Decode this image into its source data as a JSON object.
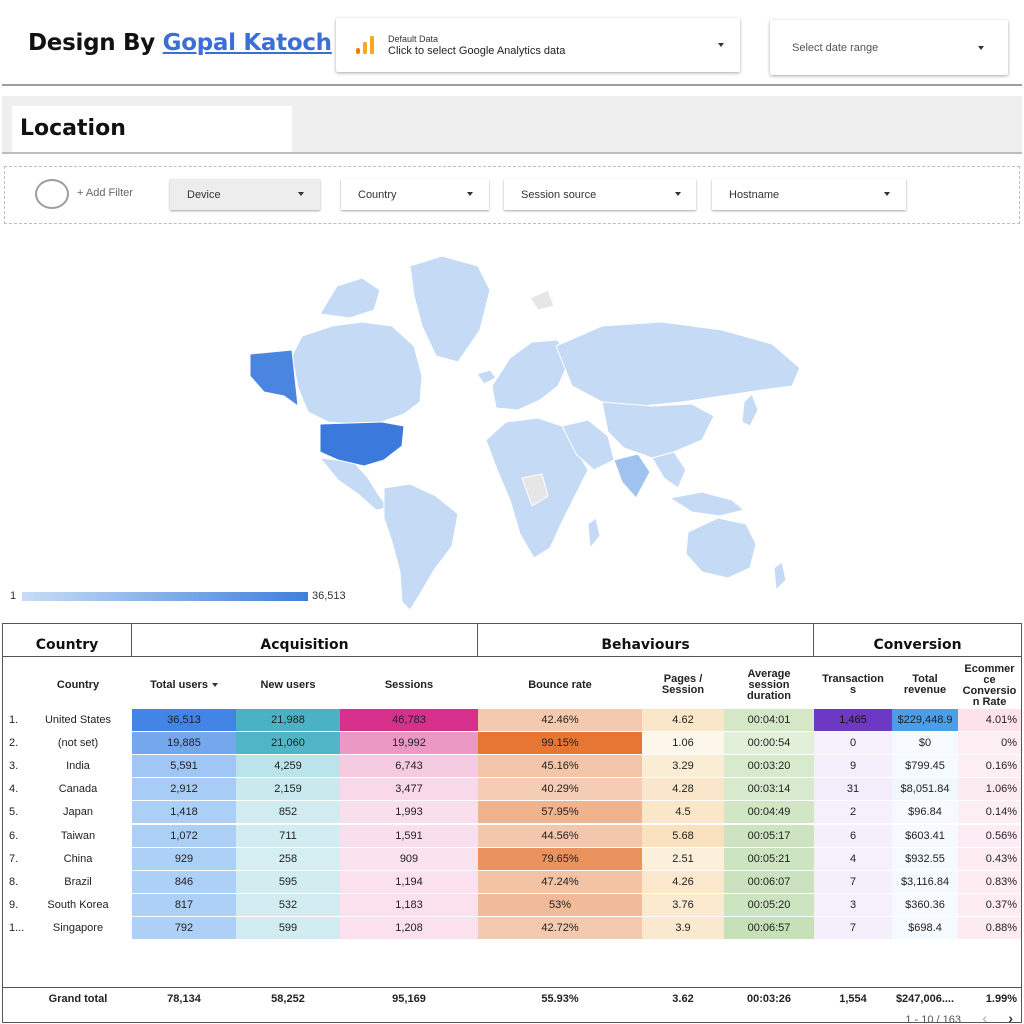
{
  "header": {
    "brand_prefix": "Design By ",
    "brand_link": "Gopal Katoch",
    "data_source": {
      "small": "Default Data",
      "main": "Click to select Google Analytics data",
      "icon": "analytics-bar-icon"
    },
    "date_range": {
      "label": "Select date range"
    }
  },
  "section": {
    "title": "Location"
  },
  "filters": {
    "add_filter": "+ Add Filter",
    "chips": [
      {
        "label": "Device"
      },
      {
        "label": "Country"
      },
      {
        "label": "Session source"
      },
      {
        "label": "Hostname"
      }
    ]
  },
  "map": {
    "legend_min": "1",
    "legend_max": "36,513",
    "low_color": "#c7ddf6",
    "high_color": "#3f7fdc"
  },
  "table": {
    "groups": {
      "country": "Country",
      "acquisition": "Acquisition",
      "behaviours": "Behaviours",
      "conversion": "Conversion"
    },
    "headers": {
      "country": "Country",
      "total_users": "Total users",
      "new_users": "New users",
      "sessions": "Sessions",
      "bounce_rate": "Bounce rate",
      "pages_session_1": "Pages /",
      "pages_session_2": "Session",
      "avg_1": "Average",
      "avg_2": "session",
      "avg_3": "duration",
      "trans_1": "Transaction",
      "trans_2": "s",
      "rev_1": "Total",
      "rev_2": "revenue",
      "ecom_1": "Ecommer",
      "ecom_2": "ce",
      "ecom_3": "Conversio",
      "ecom_4": "n Rate"
    },
    "rows": [
      {
        "idx": "1.",
        "country": "United States",
        "users": "36,513",
        "new_users": "21,988",
        "sessions": "46,783",
        "bounce": "42.46%",
        "pages": "4.62",
        "duration": "00:04:01",
        "transactions": "1,465",
        "revenue": "$229,448.9",
        "conversion": "4.01%"
      },
      {
        "idx": "2.",
        "country": "(not set)",
        "users": "19,885",
        "new_users": "21,060",
        "sessions": "19,992",
        "bounce": "99.15%",
        "pages": "1.06",
        "duration": "00:00:54",
        "transactions": "0",
        "revenue": "$0",
        "conversion": "0%"
      },
      {
        "idx": "3.",
        "country": "India",
        "users": "5,591",
        "new_users": "4,259",
        "sessions": "6,743",
        "bounce": "45.16%",
        "pages": "3.29",
        "duration": "00:03:20",
        "transactions": "9",
        "revenue": "$799.45",
        "conversion": "0.16%"
      },
      {
        "idx": "4.",
        "country": "Canada",
        "users": "2,912",
        "new_users": "2,159",
        "sessions": "3,477",
        "bounce": "40.29%",
        "pages": "4.28",
        "duration": "00:03:14",
        "transactions": "31",
        "revenue": "$8,051.84",
        "conversion": "1.06%"
      },
      {
        "idx": "5.",
        "country": "Japan",
        "users": "1,418",
        "new_users": "852",
        "sessions": "1,993",
        "bounce": "57.95%",
        "pages": "4.5",
        "duration": "00:04:49",
        "transactions": "2",
        "revenue": "$96.84",
        "conversion": "0.14%"
      },
      {
        "idx": "6.",
        "country": "Taiwan",
        "users": "1,072",
        "new_users": "711",
        "sessions": "1,591",
        "bounce": "44.56%",
        "pages": "5.68",
        "duration": "00:05:17",
        "transactions": "6",
        "revenue": "$603.41",
        "conversion": "0.56%"
      },
      {
        "idx": "7.",
        "country": "China",
        "users": "929",
        "new_users": "258",
        "sessions": "909",
        "bounce": "79.65%",
        "pages": "2.51",
        "duration": "00:05:21",
        "transactions": "4",
        "revenue": "$932.55",
        "conversion": "0.43%"
      },
      {
        "idx": "8.",
        "country": "Brazil",
        "users": "846",
        "new_users": "595",
        "sessions": "1,194",
        "bounce": "47.24%",
        "pages": "4.26",
        "duration": "00:06:07",
        "transactions": "7",
        "revenue": "$3,116.84",
        "conversion": "0.83%"
      },
      {
        "idx": "9.",
        "country": "South Korea",
        "users": "817",
        "new_users": "532",
        "sessions": "1,183",
        "bounce": "53%",
        "pages": "3.76",
        "duration": "00:05:20",
        "transactions": "3",
        "revenue": "$360.36",
        "conversion": "0.37%"
      },
      {
        "idx": "1...",
        "country": "Singapore",
        "users": "792",
        "new_users": "599",
        "sessions": "1,208",
        "bounce": "42.72%",
        "pages": "3.9",
        "duration": "00:06:57",
        "transactions": "7",
        "revenue": "$698.4",
        "conversion": "0.88%"
      }
    ],
    "total": {
      "label": "Grand total",
      "users": "78,134",
      "new_users": "58,252",
      "sessions": "95,169",
      "bounce": "55.93%",
      "pages": "3.62",
      "duration": "00:03:26",
      "transactions": "1,554",
      "revenue": "$247,006....",
      "conversion": "1.99%"
    },
    "pager": {
      "range": "1 - 10 / 163",
      "prev": "‹",
      "next": "›"
    }
  }
}
